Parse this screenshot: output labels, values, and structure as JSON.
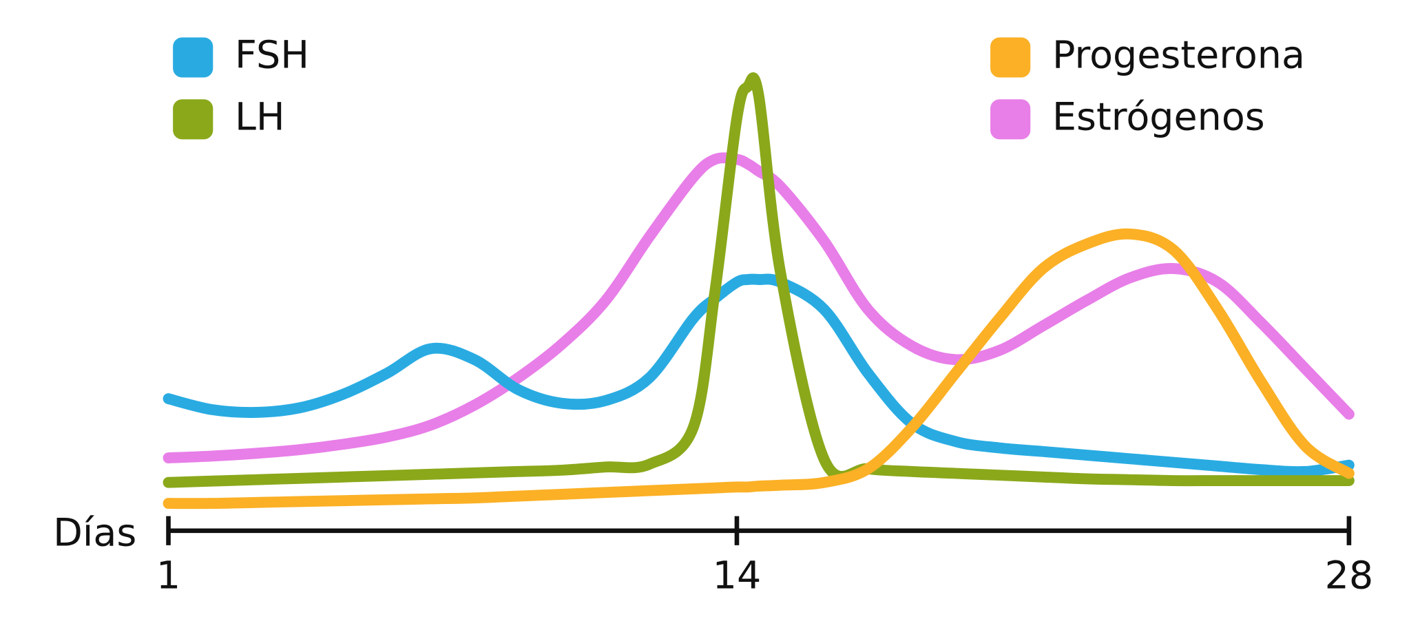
{
  "chart_data": {
    "type": "line",
    "x_label": "Días",
    "x": [
      1,
      2,
      3,
      4,
      5,
      6,
      7,
      8,
      9,
      10,
      11,
      12,
      13,
      13.5,
      14,
      14.25,
      14.5,
      15,
      16,
      17,
      18,
      19,
      20,
      21,
      22,
      23,
      24,
      25,
      26,
      27,
      28
    ],
    "xlim": [
      1,
      28
    ],
    "xticks": [
      1,
      14,
      28
    ],
    "ylim": [
      0,
      100
    ],
    "series": [
      {
        "name": "FSH",
        "color": "#29abe2",
        "values": [
          29,
          26.6,
          26,
          27,
          30,
          34.6,
          40,
          37.6,
          31,
          28,
          28.6,
          33.6,
          46.6,
          51,
          54.6,
          55.2,
          55.2,
          54.6,
          48.6,
          34.6,
          23.6,
          19.6,
          18.2,
          17.4,
          16.6,
          15.8,
          15,
          14.2,
          13.4,
          13,
          14.4
        ]
      },
      {
        "name": "LH",
        "color": "#8aa81a",
        "values": [
          10.6,
          10.9,
          11.2,
          11.5,
          11.8,
          12.1,
          12.4,
          12.7,
          13,
          13.3,
          14,
          14.6,
          22.6,
          52.6,
          90.6,
          97.6,
          95.6,
          56.6,
          15.6,
          13.6,
          13,
          12.6,
          12.2,
          11.8,
          11.4,
          11.2,
          11,
          11,
          11,
          11,
          11
        ]
      },
      {
        "name": "Progesterona",
        "color": "#fbb025",
        "values": [
          6,
          6,
          6.2,
          6.4,
          6.6,
          6.8,
          7,
          7.2,
          7.6,
          8,
          8.4,
          8.8,
          9.2,
          9.4,
          9.6,
          9.6,
          9.8,
          10,
          10.6,
          13.6,
          22.6,
          34.6,
          46.6,
          57.6,
          63,
          65.2,
          61.6,
          48.6,
          32.6,
          18.6,
          12.6
        ]
      },
      {
        "name": "Estrógenos",
        "color": "#e87ee8",
        "values": [
          16,
          16.4,
          17,
          17.8,
          19,
          20.6,
          23.2,
          27.6,
          33.6,
          41,
          50.6,
          64.6,
          77.6,
          81.6,
          81.6,
          80.6,
          79,
          75.6,
          63.6,
          48.6,
          40.6,
          37.6,
          39.6,
          45,
          50.6,
          55.6,
          57.6,
          54.6,
          45.6,
          35.6,
          25.6
        ]
      }
    ]
  }
}
